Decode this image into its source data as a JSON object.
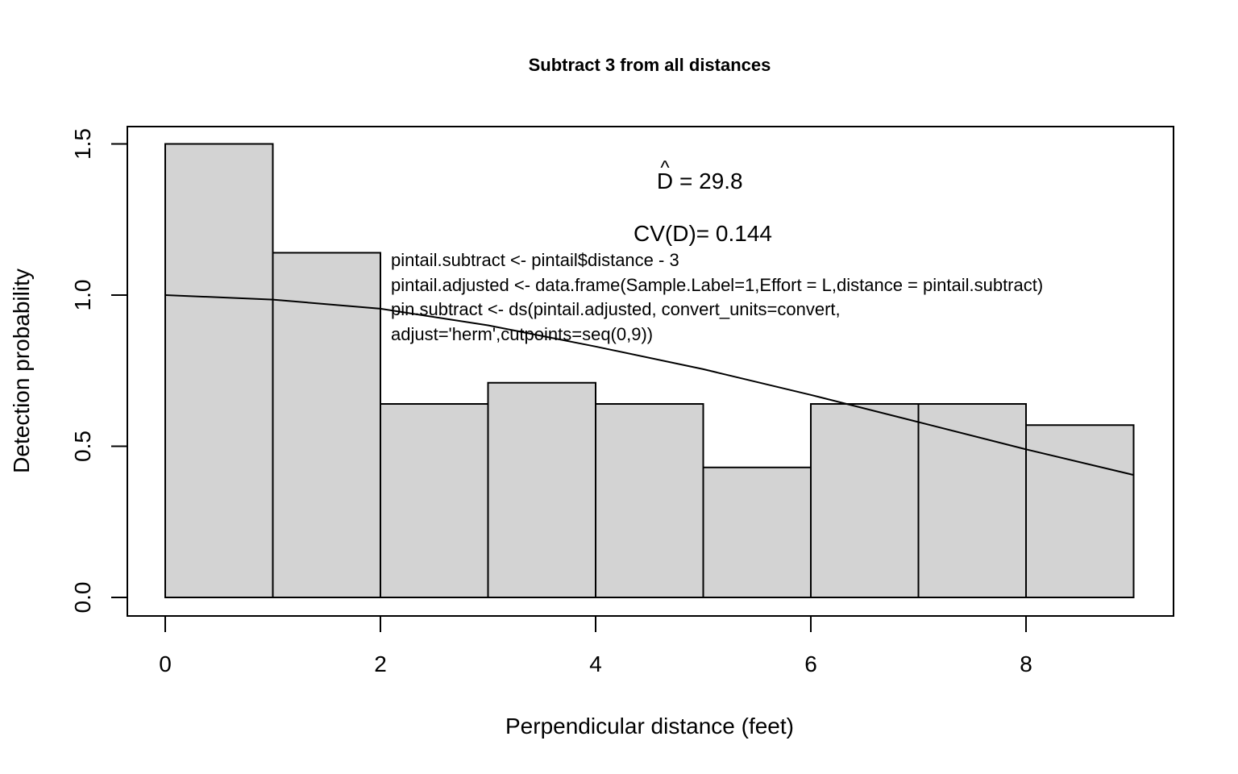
{
  "chart_data": {
    "type": "bar",
    "title": "Subtract 3 from all distances",
    "xlabel": "Perpendicular distance (feet)",
    "ylabel": "Detection probability",
    "xlim": [
      0,
      9
    ],
    "ylim": [
      0,
      1.5
    ],
    "xticks": [
      0,
      2,
      4,
      6,
      8
    ],
    "xtick_labels": [
      "0",
      "2",
      "4",
      "6",
      "8"
    ],
    "yticks": [
      0,
      0.5,
      1.0,
      1.5
    ],
    "ytick_labels": [
      "0.0",
      "0.5",
      "1.0",
      "1.5"
    ],
    "bins": [
      {
        "from": 0,
        "to": 1,
        "value": 1.5
      },
      {
        "from": 1,
        "to": 2,
        "value": 1.14
      },
      {
        "from": 2,
        "to": 3,
        "value": 0.64
      },
      {
        "from": 3,
        "to": 4,
        "value": 0.71
      },
      {
        "from": 4,
        "to": 5,
        "value": 0.64
      },
      {
        "from": 5,
        "to": 6,
        "value": 0.43
      },
      {
        "from": 6,
        "to": 7,
        "value": 0.64
      },
      {
        "from": 7,
        "to": 8,
        "value": 0.64
      },
      {
        "from": 8,
        "to": 9,
        "value": 0.57
      }
    ],
    "bar_fill": "#d3d3d3",
    "fitted_curve": {
      "x": [
        0,
        1,
        2,
        3,
        4,
        5,
        6,
        7,
        8,
        9
      ],
      "y": [
        1.0,
        0.985,
        0.955,
        0.9,
        0.83,
        0.755,
        0.67,
        0.58,
        0.49,
        0.405
      ]
    },
    "grid": false,
    "annotations": {
      "d_hat_symbol": "D",
      "d_hat_accent": "^",
      "d_hat_value": "= 29.8",
      "cv": "CV(D)= 0.144",
      "code_lines": [
        "pintail.subtract <- pintail$distance - 3",
        "pintail.adjusted <- data.frame(Sample.Label=1,Effort = L,distance = pintail.subtract)",
        "pin.subtract <- ds(pintail.adjusted, convert_units=convert,",
        "adjust='herm',cutpoints=seq(0,9))"
      ]
    }
  }
}
